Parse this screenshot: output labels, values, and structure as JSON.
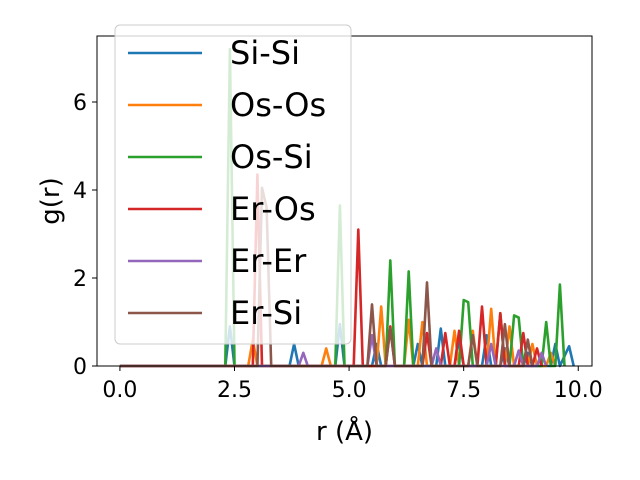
{
  "chart_data": {
    "type": "line",
    "xlabel": "r (Å)",
    "ylabel": "g(r)",
    "xlim": [
      -0.5,
      10.3
    ],
    "ylim": [
      0,
      7.5
    ],
    "x_ticks": [
      0.0,
      2.5,
      5.0,
      7.5,
      10.0
    ],
    "x_tick_labels": [
      "0.0",
      "2.5",
      "5.0",
      "7.5",
      "10.0"
    ],
    "y_ticks": [
      0,
      2,
      4,
      6
    ],
    "y_tick_labels": [
      "0",
      "2",
      "4",
      "6"
    ],
    "grid": false,
    "legend_position": "top-left",
    "series": [
      {
        "name": "Si-Si",
        "color": "#1f77b4",
        "points": [
          [
            0,
            0
          ],
          [
            2.3,
            0
          ],
          [
            2.4,
            0.9
          ],
          [
            2.5,
            0
          ],
          [
            3.7,
            0
          ],
          [
            3.8,
            0.5
          ],
          [
            3.9,
            0
          ],
          [
            4.7,
            0
          ],
          [
            4.8,
            0.95
          ],
          [
            4.9,
            0
          ],
          [
            5.5,
            0
          ],
          [
            5.6,
            0.5
          ],
          [
            5.7,
            0
          ],
          [
            6.4,
            0
          ],
          [
            6.5,
            0.5
          ],
          [
            6.6,
            0
          ],
          [
            6.9,
            0
          ],
          [
            7.0,
            0.85
          ],
          [
            7.1,
            0
          ],
          [
            7.3,
            0
          ],
          [
            7.4,
            0.6
          ],
          [
            7.5,
            0
          ],
          [
            7.9,
            0
          ],
          [
            8.0,
            0.7
          ],
          [
            8.1,
            0
          ],
          [
            8.3,
            0
          ],
          [
            8.4,
            0.4
          ],
          [
            8.5,
            0
          ],
          [
            8.8,
            0
          ],
          [
            8.9,
            0.3
          ],
          [
            9.0,
            0
          ],
          [
            9.4,
            0
          ],
          [
            9.5,
            0.5
          ],
          [
            9.6,
            0
          ],
          [
            9.8,
            0.45
          ],
          [
            9.9,
            0
          ]
        ]
      },
      {
        "name": "Os-Os",
        "color": "#ff7f0e",
        "points": [
          [
            0,
            0
          ],
          [
            2.8,
            0
          ],
          [
            2.9,
            0.6
          ],
          [
            3.0,
            0
          ],
          [
            4.4,
            0
          ],
          [
            4.5,
            0.4
          ],
          [
            4.6,
            0
          ],
          [
            5.6,
            0
          ],
          [
            5.7,
            1.35
          ],
          [
            5.8,
            0
          ],
          [
            6.2,
            0
          ],
          [
            6.3,
            1.05
          ],
          [
            6.4,
            0
          ],
          [
            6.5,
            0
          ],
          [
            6.6,
            1.0
          ],
          [
            6.7,
            0
          ],
          [
            7.2,
            0
          ],
          [
            7.3,
            0.8
          ],
          [
            7.4,
            0
          ],
          [
            7.6,
            0
          ],
          [
            7.7,
            0.8
          ],
          [
            7.8,
            0
          ],
          [
            8.0,
            0
          ],
          [
            8.1,
            1.3
          ],
          [
            8.2,
            0
          ],
          [
            8.4,
            0
          ],
          [
            8.5,
            0.9
          ],
          [
            8.6,
            0
          ],
          [
            8.9,
            0
          ],
          [
            9.0,
            0.5
          ],
          [
            9.1,
            0
          ],
          [
            9.3,
            0
          ],
          [
            9.4,
            0.3
          ],
          [
            9.5,
            0
          ]
        ]
      },
      {
        "name": "Os-Si",
        "color": "#2ca02c",
        "points": [
          [
            0,
            0
          ],
          [
            2.3,
            0
          ],
          [
            2.4,
            7.2
          ],
          [
            2.5,
            0
          ],
          [
            4.7,
            0
          ],
          [
            4.8,
            3.65
          ],
          [
            4.9,
            0
          ],
          [
            5.8,
            0
          ],
          [
            5.9,
            2.4
          ],
          [
            6.0,
            0
          ],
          [
            6.2,
            0
          ],
          [
            6.3,
            2.15
          ],
          [
            6.4,
            0
          ],
          [
            7.4,
            0
          ],
          [
            7.5,
            1.5
          ],
          [
            7.6,
            1.45
          ],
          [
            7.7,
            0
          ],
          [
            8.2,
            0
          ],
          [
            8.3,
            1.2
          ],
          [
            8.4,
            0
          ],
          [
            8.5,
            0
          ],
          [
            8.6,
            1.15
          ],
          [
            8.7,
            1.1
          ],
          [
            8.8,
            0
          ],
          [
            9.2,
            0
          ],
          [
            9.3,
            1.0
          ],
          [
            9.4,
            0
          ],
          [
            9.5,
            0
          ],
          [
            9.6,
            1.85
          ],
          [
            9.7,
            0
          ]
        ]
      },
      {
        "name": "Er-Os",
        "color": "#d62728",
        "points": [
          [
            0,
            0
          ],
          [
            2.9,
            0
          ],
          [
            3.0,
            4.35
          ],
          [
            3.1,
            0
          ],
          [
            5.1,
            0
          ],
          [
            5.2,
            3.1
          ],
          [
            5.3,
            0
          ],
          [
            5.8,
            0
          ],
          [
            5.9,
            0.9
          ],
          [
            6.0,
            0
          ],
          [
            6.6,
            0
          ],
          [
            6.7,
            0.75
          ],
          [
            6.8,
            0
          ],
          [
            7.0,
            0
          ],
          [
            7.1,
            0.75
          ],
          [
            7.2,
            0
          ],
          [
            7.3,
            0
          ],
          [
            7.4,
            0.8
          ],
          [
            7.5,
            0
          ],
          [
            7.8,
            0
          ],
          [
            7.9,
            1.35
          ],
          [
            8.0,
            0
          ],
          [
            8.2,
            0
          ],
          [
            8.3,
            1.2
          ],
          [
            8.4,
            0
          ],
          [
            8.7,
            0
          ],
          [
            8.8,
            0.75
          ],
          [
            8.9,
            0
          ],
          [
            9.0,
            0
          ],
          [
            9.1,
            0.4
          ],
          [
            9.2,
            0
          ]
        ]
      },
      {
        "name": "Er-Er",
        "color": "#9467bd",
        "points": [
          [
            0,
            0
          ],
          [
            3.9,
            0
          ],
          [
            4.0,
            0.3
          ],
          [
            4.1,
            0
          ],
          [
            5.4,
            0
          ],
          [
            5.5,
            0.7
          ],
          [
            5.6,
            0
          ],
          [
            6.8,
            0
          ],
          [
            6.9,
            0.4
          ],
          [
            7.0,
            0
          ],
          [
            8.0,
            0
          ],
          [
            8.1,
            0.5
          ],
          [
            8.2,
            0
          ],
          [
            8.6,
            0
          ],
          [
            8.7,
            0.35
          ],
          [
            8.8,
            0
          ],
          [
            9.1,
            0
          ],
          [
            9.2,
            0.3
          ],
          [
            9.3,
            0
          ]
        ]
      },
      {
        "name": "Er-Si",
        "color": "#8c564b",
        "points": [
          [
            0,
            0
          ],
          [
            3.0,
            0
          ],
          [
            3.1,
            4.05
          ],
          [
            3.2,
            3.6
          ],
          [
            3.3,
            0
          ],
          [
            5.4,
            0
          ],
          [
            5.5,
            1.4
          ],
          [
            5.6,
            0
          ],
          [
            5.8,
            0
          ],
          [
            5.9,
            0.85
          ],
          [
            6.0,
            0
          ],
          [
            6.6,
            0
          ],
          [
            6.7,
            1.9
          ],
          [
            6.8,
            0
          ],
          [
            7.6,
            0
          ],
          [
            7.7,
            0.7
          ],
          [
            7.8,
            0
          ],
          [
            8.3,
            0
          ],
          [
            8.4,
            0.95
          ],
          [
            8.5,
            0
          ],
          [
            8.8,
            0
          ],
          [
            8.9,
            0.6
          ],
          [
            9.0,
            0
          ]
        ]
      }
    ]
  }
}
